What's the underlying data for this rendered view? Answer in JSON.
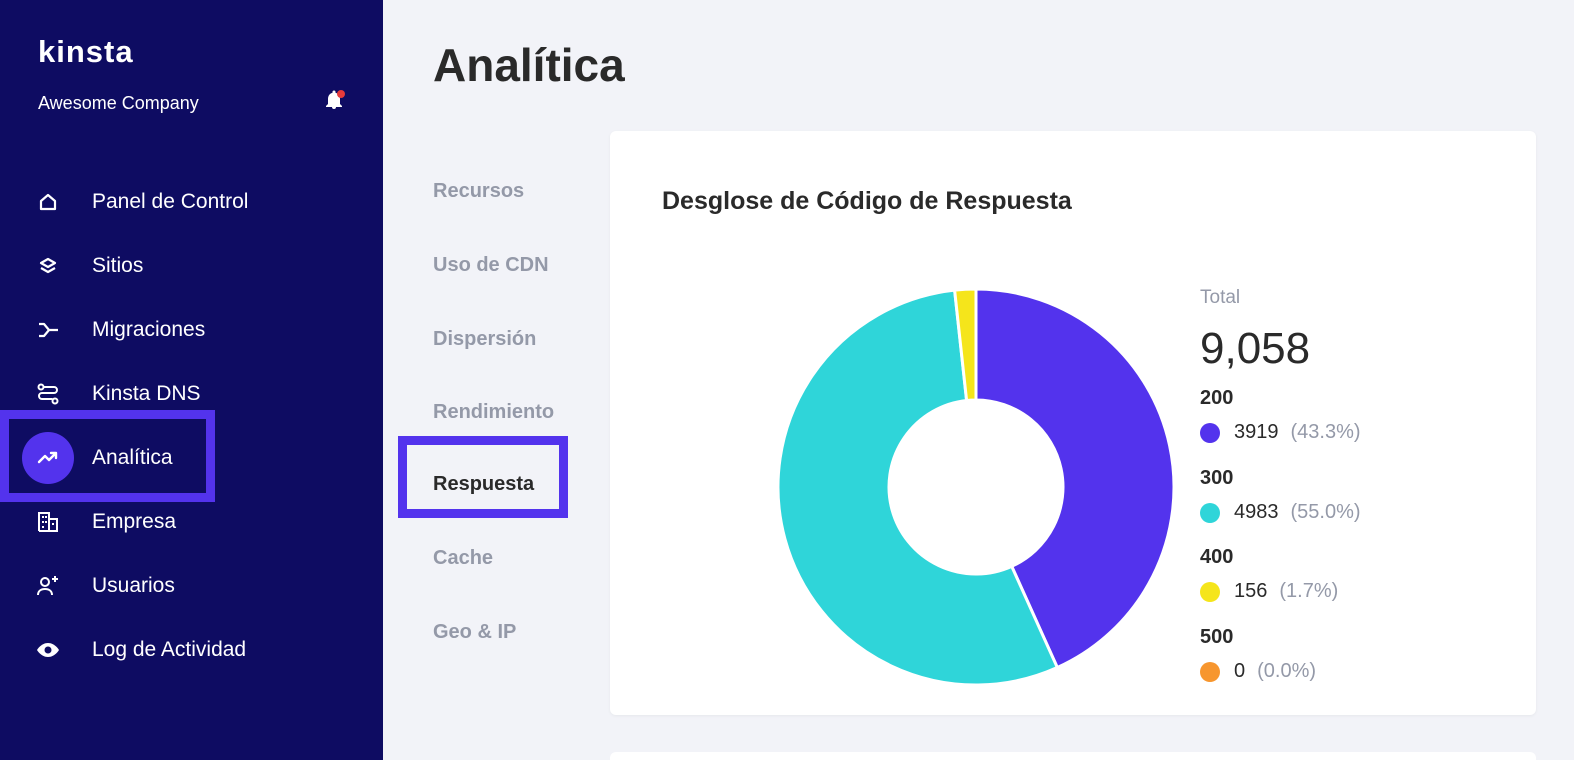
{
  "sidebar": {
    "logo": "kinsta",
    "company": "Awesome Company",
    "items": [
      {
        "label": "Panel de Control",
        "icon": "home-icon"
      },
      {
        "label": "Sitios",
        "icon": "layers-icon"
      },
      {
        "label": "Migraciones",
        "icon": "migration-icon"
      },
      {
        "label": "Kinsta DNS",
        "icon": "dns-icon"
      },
      {
        "label": "Analítica",
        "icon": "trending-up-icon",
        "active": true
      },
      {
        "label": "Empresa",
        "icon": "building-icon"
      },
      {
        "label": "Usuarios",
        "icon": "add-user-icon"
      },
      {
        "label": "Log de Actividad",
        "icon": "eye-icon"
      }
    ]
  },
  "page": {
    "title": "Analítica"
  },
  "subnav": {
    "items": [
      {
        "label": "Recursos"
      },
      {
        "label": "Uso de CDN"
      },
      {
        "label": "Dispersión"
      },
      {
        "label": "Rendimiento"
      },
      {
        "label": "Respuesta",
        "active": true
      },
      {
        "label": "Cache"
      },
      {
        "label": "Geo & IP"
      }
    ]
  },
  "card": {
    "title": "Desglose de Código de Respuesta",
    "total_label": "Total",
    "total_value": "9,058"
  },
  "chart_data": {
    "type": "pie",
    "title": "Desglose de Código de Respuesta",
    "donut": true,
    "categories": [
      "200",
      "300",
      "400",
      "500"
    ],
    "values": [
      3919,
      4983,
      156,
      0
    ],
    "percent_labels": [
      "(43.3%)",
      "(55.0%)",
      "(1.7%)",
      "(0.0%)"
    ],
    "colors": [
      "#5333ed",
      "#2fd5d9",
      "#f5e51b",
      "#f7962e"
    ],
    "legend": "right"
  },
  "colors": {
    "sidebar_bg": "#0e0c62",
    "accent": "#5333ed",
    "notification": "#e63b3b"
  }
}
